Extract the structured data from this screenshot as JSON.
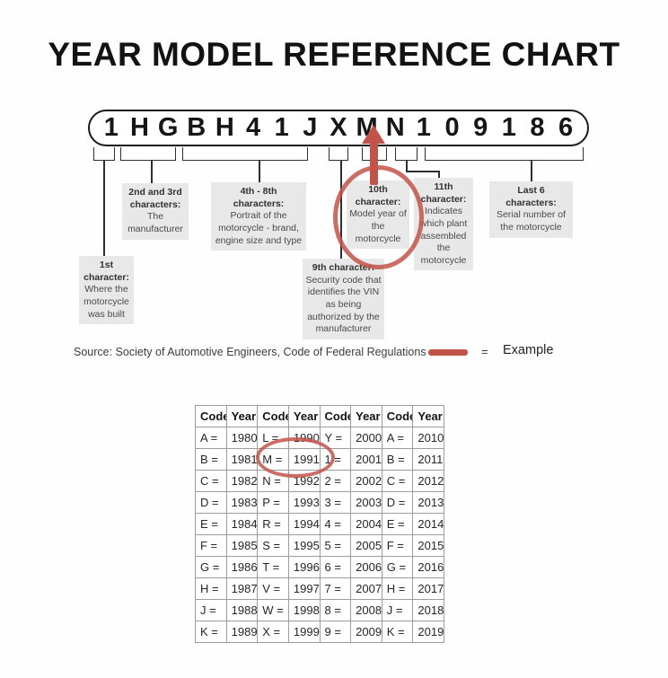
{
  "title": "YEAR MODEL REFERENCE CHART",
  "vin": {
    "characters": [
      "1",
      "H",
      "G",
      "B",
      "H",
      "4",
      "1",
      "J",
      "X",
      "M",
      "N",
      "1",
      "0",
      "9",
      "1",
      "8",
      "6"
    ]
  },
  "callouts": {
    "first": {
      "title": "1st character:",
      "body": "Where the motorcycle was built"
    },
    "second_third": {
      "title": "2nd and 3rd characters:",
      "body": "The manufacturer"
    },
    "fourth_eighth": {
      "title": "4th - 8th characters:",
      "body": "Portrait of the motorcycle - brand, engine size and type"
    },
    "ninth": {
      "title": "9th character:",
      "body": "Security code that identifies the VIN as being authorized by the manufacturer"
    },
    "tenth": {
      "title": "10th character:",
      "body": "Model year of the motorcycle"
    },
    "eleventh": {
      "title": "11th character:",
      "body": "Indicates which plant assembled the motorcycle"
    },
    "last_six": {
      "title": "Last 6 characters:",
      "body": "Serial number of the motorcycle"
    }
  },
  "source": {
    "text": "Source:  Society of Automotive Engineers, Code of Federal Regulations",
    "equals": "=",
    "legend_label": "Example"
  },
  "year_table": {
    "headers": [
      "Code",
      "Year",
      "Code",
      "Year",
      "Code",
      "Year",
      "Code",
      "Year"
    ],
    "rows": [
      [
        "A =",
        "1980",
        "L =",
        "1990",
        "Y =",
        "2000",
        "A =",
        "2010"
      ],
      [
        "B =",
        "1981",
        "M =",
        "1991",
        "1 =",
        "2001",
        "B =",
        "2011"
      ],
      [
        "C =",
        "1982",
        "N =",
        "1992",
        "2 =",
        "2002",
        "C =",
        "2012"
      ],
      [
        "D =",
        "1983",
        "P =",
        "1993",
        "3 =",
        "2003",
        "D =",
        "2013"
      ],
      [
        "E =",
        "1984",
        "R =",
        "1994",
        "4 =",
        "2004",
        "E =",
        "2014"
      ],
      [
        "F =",
        "1985",
        "S =",
        "1995",
        "5 =",
        "2005",
        "F =",
        "2015"
      ],
      [
        "G =",
        "1986",
        "T =",
        "1996",
        "6 =",
        "2006",
        "G =",
        "2016"
      ],
      [
        "H =",
        "1987",
        "V =",
        "1997",
        "7 =",
        "2007",
        "H =",
        "2017"
      ],
      [
        "J =",
        "1988",
        "W =",
        "1998",
        "8 =",
        "2008",
        "J =",
        "2018"
      ],
      [
        "K =",
        "1989",
        "X =",
        "1999",
        "9 =",
        "2009",
        "K =",
        "2019"
      ]
    ],
    "highlighted_example": "M = 1991"
  },
  "colors": {
    "accent_red": "#c2534a",
    "callout_bg": "#e8e8e8"
  }
}
